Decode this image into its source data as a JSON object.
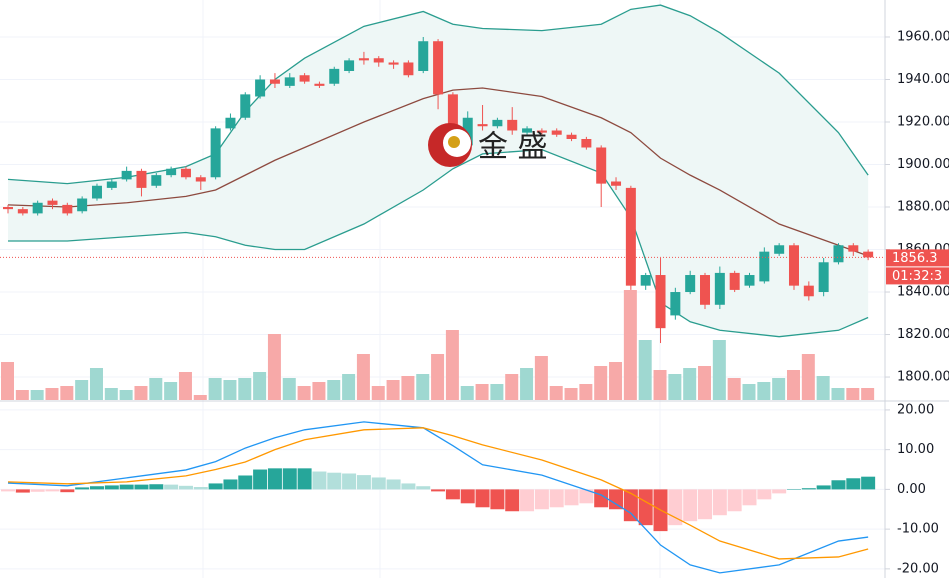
{
  "chart_data": [
    {
      "type": "candlestick",
      "open": [
        1880,
        1879,
        1877,
        1883,
        1881,
        1878,
        1884,
        1889,
        1893,
        1897,
        1890,
        1895,
        1898,
        1894,
        1894,
        1917,
        1922,
        1932,
        1940,
        1937,
        1942,
        1938,
        1938,
        1944,
        1950,
        1950,
        1948,
        1948,
        1944,
        1958,
        1933,
        1909,
        1919,
        1918,
        1921,
        1915,
        1916,
        1916,
        1914,
        1912,
        1908,
        1892,
        1889,
        1843,
        1848,
        1829,
        1840,
        1848,
        1834,
        1849,
        1843,
        1845,
        1858,
        1862,
        1843,
        1840,
        1854,
        1862,
        1859
      ],
      "high": [
        1881,
        1880,
        1883,
        1884,
        1882,
        1885,
        1891,
        1893,
        1899,
        1898,
        1896,
        1899,
        1899,
        1895,
        1918,
        1924,
        1934,
        1942,
        1943,
        1943,
        1943,
        1939,
        1946,
        1950,
        1953,
        1951,
        1949,
        1949,
        1960,
        1959,
        1934,
        1925,
        1928,
        1922,
        1927,
        1918,
        1917,
        1917,
        1915,
        1913,
        1909,
        1894,
        1890,
        1849,
        1856,
        1842,
        1850,
        1849,
        1852,
        1850,
        1849,
        1861,
        1863,
        1863,
        1845,
        1856,
        1863,
        1863,
        1860
      ],
      "low": [
        1877,
        1876,
        1876,
        1879,
        1876,
        1877,
        1883,
        1888,
        1892,
        1885,
        1889,
        1894,
        1893,
        1888,
        1893,
        1916,
        1921,
        1931,
        1936,
        1936,
        1938,
        1936,
        1937,
        1943,
        1947,
        1946,
        1945,
        1941,
        1943,
        1926,
        1908,
        1907,
        1916,
        1917,
        1914,
        1914,
        1914,
        1913,
        1911,
        1907,
        1880,
        1888,
        1841,
        1841,
        1816,
        1827,
        1839,
        1832,
        1832,
        1840,
        1842,
        1844,
        1857,
        1841,
        1836,
        1838,
        1853,
        1857,
        1855
      ],
      "close": [
        1879,
        1877,
        1882,
        1881,
        1877,
        1884,
        1890,
        1892,
        1897,
        1889,
        1895,
        1898,
        1894,
        1892,
        1917,
        1922,
        1933,
        1940,
        1938,
        1941,
        1939,
        1937,
        1945,
        1949,
        1949,
        1948,
        1947,
        1942,
        1958,
        1933,
        1912,
        1922,
        1918,
        1921,
        1916,
        1917,
        1915,
        1914,
        1912,
        1908,
        1891,
        1890,
        1843,
        1848,
        1823,
        1840,
        1848,
        1834,
        1849,
        1841,
        1848,
        1859,
        1862,
        1843,
        1838,
        1854,
        1862,
        1859,
        1856.3
      ],
      "volume": [
        38,
        10,
        10,
        12,
        14,
        20,
        32,
        12,
        10,
        14,
        22,
        18,
        28,
        5,
        22,
        20,
        22,
        28,
        66,
        22,
        14,
        18,
        20,
        26,
        46,
        14,
        20,
        24,
        26,
        46,
        70,
        14,
        16,
        16,
        26,
        32,
        44,
        14,
        12,
        16,
        34,
        38,
        110,
        60,
        30,
        26,
        32,
        34,
        60,
        22,
        16,
        18,
        22,
        30,
        46,
        24,
        12,
        12,
        12
      ],
      "up_color": "#26a69a",
      "down_color": "#ef5350",
      "volume_up_color": "#9fd8d1",
      "volume_down_color": "#f7a9a8",
      "band_fill": "#eef7f6",
      "series": [
        {
          "color": "#2a9d8f",
          "x": [
            0,
            4,
            8,
            12,
            14,
            16,
            18,
            20,
            24,
            28,
            30,
            32,
            36,
            40,
            42,
            44,
            46,
            48,
            52,
            56,
            58
          ],
          "values": [
            1893,
            1891,
            1894,
            1899,
            1905,
            1925,
            1940,
            1950,
            1965,
            1972,
            1966,
            1964,
            1963,
            1966,
            1973,
            1975,
            1970,
            1962,
            1943,
            1915,
            1895
          ]
        },
        {
          "color": "#8d4a3f",
          "x": [
            0,
            4,
            8,
            12,
            14,
            16,
            18,
            20,
            24,
            28,
            30,
            32,
            36,
            40,
            42,
            44,
            46,
            48,
            52,
            56,
            58
          ],
          "values": [
            1881,
            1880,
            1882,
            1885,
            1888,
            1895,
            1902,
            1908,
            1920,
            1931,
            1935,
            1936,
            1932,
            1922,
            1915,
            1903,
            1895,
            1888,
            1872,
            1862,
            1857
          ]
        },
        {
          "color": "#2a9d8f",
          "x": [
            0,
            4,
            8,
            12,
            14,
            16,
            18,
            20,
            24,
            28,
            30,
            32,
            36,
            40,
            42,
            44,
            46,
            48,
            52,
            56,
            58
          ],
          "values": [
            1864,
            1864,
            1866,
            1868,
            1866,
            1862,
            1860,
            1860,
            1872,
            1888,
            1898,
            1905,
            1907,
            1896,
            1875,
            1835,
            1826,
            1822,
            1819,
            1822,
            1828
          ]
        }
      ],
      "ylim": [
        1789.2,
        1977.4
      ],
      "yticks": [
        {
          "value": 1800,
          "label": "1800.00"
        },
        {
          "value": 1820,
          "label": "1820.00"
        },
        {
          "value": 1840,
          "label": "1840.00"
        },
        {
          "value": 1860,
          "label": "1860.00"
        },
        {
          "value": 1880,
          "label": "1880.00"
        },
        {
          "value": 1900,
          "label": "1900.00"
        },
        {
          "value": 1920,
          "label": "1920.00"
        },
        {
          "value": 1940,
          "label": "1940.00"
        },
        {
          "value": 1960,
          "label": "1960.00"
        }
      ],
      "grid": true,
      "last_price_label": "1856.3",
      "countdown": "01:32:3",
      "watermark": "金 盛"
    },
    {
      "type": "macd",
      "histogram": [
        -0.5,
        -0.8,
        -0.6,
        -0.5,
        -0.7,
        0.5,
        0.8,
        1,
        1.2,
        1.2,
        1.3,
        1.2,
        0.9,
        0.6,
        1.5,
        2.5,
        3.5,
        5,
        5.3,
        5.3,
        5.3,
        4.5,
        4.2,
        4,
        3.6,
        3,
        2.5,
        1.5,
        0.8,
        -0.5,
        -2.5,
        -3.5,
        -4.5,
        -5,
        -5.5,
        -5.5,
        -5,
        -4.5,
        -4,
        -3.5,
        -4.5,
        -5,
        -8,
        -9,
        -10.5,
        -9,
        -8,
        -7.5,
        -6.5,
        -5.5,
        -4,
        -2.5,
        -1,
        0,
        0.3,
        1,
        2.3,
        2.8,
        3.2
      ],
      "histogram_colors": [
        "#26a69a",
        "#b2dfdb",
        "#ef5350",
        "#ffcdd2"
      ],
      "series": [
        {
          "color": "#2196f3",
          "x": [
            0,
            4,
            8,
            12,
            14,
            16,
            18,
            20,
            24,
            28,
            30,
            32,
            36,
            40,
            42,
            44,
            46,
            48,
            52,
            56,
            58
          ],
          "values": [
            1.6,
            0.9,
            2.9,
            4.9,
            7,
            10.4,
            13,
            15,
            17,
            15.5,
            11,
            6.2,
            3.6,
            -1.4,
            -6,
            -14,
            -19,
            -21,
            -19,
            -13,
            -12
          ]
        },
        {
          "color": "#ff9800",
          "x": [
            0,
            4,
            8,
            12,
            14,
            16,
            18,
            20,
            24,
            28,
            30,
            32,
            36,
            40,
            42,
            44,
            46,
            48,
            52,
            56,
            58
          ],
          "values": [
            1.9,
            1.4,
            1.9,
            3.4,
            5,
            6.9,
            10,
            12.5,
            15,
            15.5,
            13.5,
            11.2,
            7.4,
            2.4,
            -1,
            -5.2,
            -9,
            -13,
            -17.5,
            -17,
            -15
          ]
        }
      ],
      "ylim": [
        -22.3,
        22.5
      ],
      "yticks": [
        {
          "value": 20,
          "label": "20.00"
        },
        {
          "value": 10,
          "label": "10.00"
        },
        {
          "value": 0,
          "label": "0.00"
        },
        {
          "value": -10,
          "label": "-10.00"
        },
        {
          "value": -20,
          "label": "-20.00"
        }
      ],
      "grid": true
    }
  ]
}
